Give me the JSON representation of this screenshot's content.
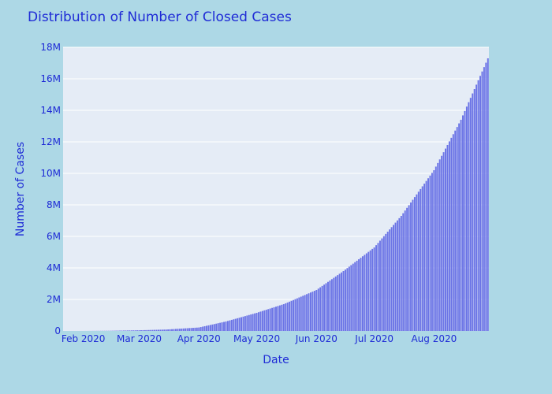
{
  "chart_data": {
    "type": "bar",
    "title": "Distribution of Number of Closed Cases",
    "xlabel": "Date",
    "ylabel": "Number of Cases",
    "x_start": "2020-01-22",
    "x_end": "2020-08-29",
    "x_range": [
      "2020-01-22",
      "2020-08-29"
    ],
    "x_ticks": [
      {
        "date": "2020-02-01",
        "label": "Feb 2020"
      },
      {
        "date": "2020-03-01",
        "label": "Mar 2020"
      },
      {
        "date": "2020-04-01",
        "label": "Apr 2020"
      },
      {
        "date": "2020-05-01",
        "label": "May 2020"
      },
      {
        "date": "2020-06-01",
        "label": "Jun 2020"
      },
      {
        "date": "2020-07-01",
        "label": "Jul 2020"
      },
      {
        "date": "2020-08-01",
        "label": "Aug 2020"
      }
    ],
    "ylim": [
      0,
      18000000
    ],
    "y_ticks": [
      {
        "value": 0,
        "label": "0"
      },
      {
        "value": 2000000,
        "label": "2M"
      },
      {
        "value": 4000000,
        "label": "4M"
      },
      {
        "value": 6000000,
        "label": "6M"
      },
      {
        "value": 8000000,
        "label": "8M"
      },
      {
        "value": 10000000,
        "label": "10M"
      },
      {
        "value": 12000000,
        "label": "12M"
      },
      {
        "value": 14000000,
        "label": "14M"
      },
      {
        "value": 16000000,
        "label": "16M"
      },
      {
        "value": 18000000,
        "label": "18M"
      }
    ],
    "anchors": [
      {
        "date": "2020-01-22",
        "value": 0
      },
      {
        "date": "2020-02-01",
        "value": 1000
      },
      {
        "date": "2020-02-15",
        "value": 12000
      },
      {
        "date": "2020-03-01",
        "value": 45000
      },
      {
        "date": "2020-03-15",
        "value": 90000
      },
      {
        "date": "2020-04-01",
        "value": 220000
      },
      {
        "date": "2020-04-15",
        "value": 600000
      },
      {
        "date": "2020-05-01",
        "value": 1150000
      },
      {
        "date": "2020-05-15",
        "value": 1700000
      },
      {
        "date": "2020-06-01",
        "value": 2600000
      },
      {
        "date": "2020-06-15",
        "value": 3800000
      },
      {
        "date": "2020-07-01",
        "value": 5300000
      },
      {
        "date": "2020-07-15",
        "value": 7300000
      },
      {
        "date": "2020-08-01",
        "value": 10200000
      },
      {
        "date": "2020-08-15",
        "value": 13400000
      },
      {
        "date": "2020-08-29",
        "value": 17300000
      }
    ],
    "grid": true,
    "colors": {
      "background": "#add8e6",
      "plot_background": "#e5ecf6",
      "bar": "#6b74e6",
      "text": "#1f2bd6",
      "grid": "#ffffff"
    }
  }
}
